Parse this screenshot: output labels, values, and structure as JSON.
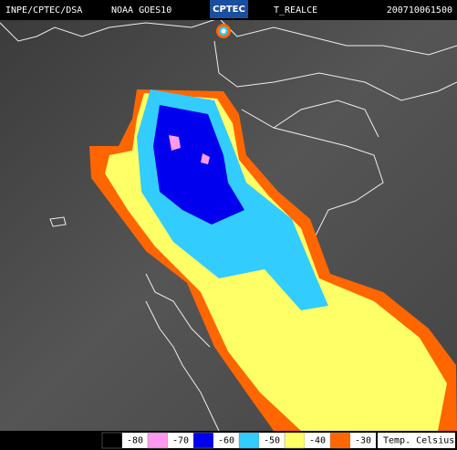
{
  "header": {
    "source": "INPE/CPTEC/DSA",
    "satellite": "NOAA GOES10",
    "logo": "CPTEC",
    "product": "T_REALCE",
    "timestamp": "200710061500"
  },
  "legend": {
    "items": [
      {
        "value": -80,
        "color": "#000000"
      },
      {
        "value": -70,
        "color": "#ff99ee"
      },
      {
        "value": -60,
        "color": "#0000ee"
      },
      {
        "value": -50,
        "color": "#33ccff"
      },
      {
        "value": -40,
        "color": "#ffff66"
      },
      {
        "value": -30,
        "color": "#ff6600"
      }
    ],
    "unit": "Temp. Celsius"
  }
}
